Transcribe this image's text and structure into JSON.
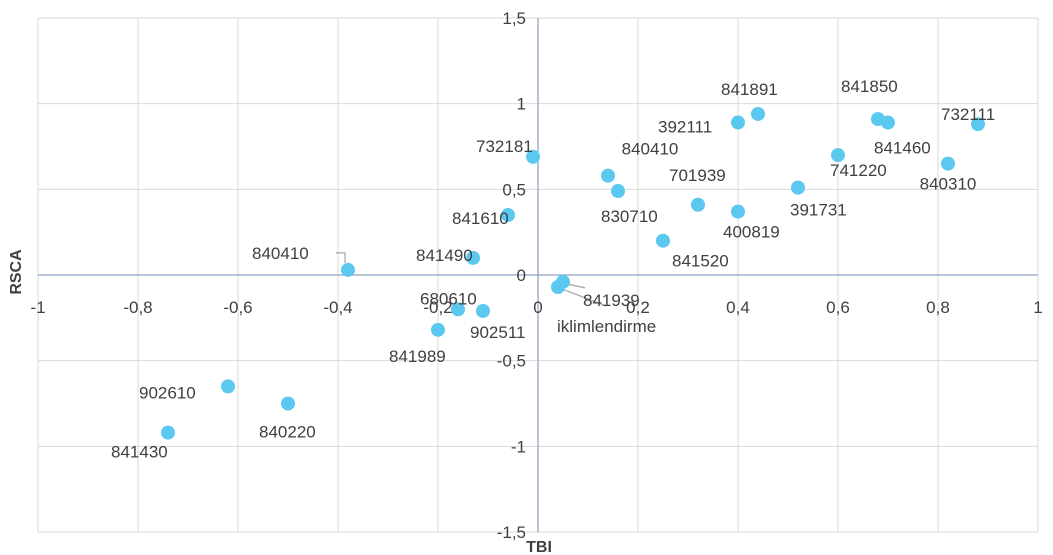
{
  "chart_data": {
    "type": "scatter",
    "title": "",
    "xlabel": "TBI",
    "ylabel": "RSCA",
    "xlim": [
      -1,
      1
    ],
    "ylim": [
      -1.5,
      1.5
    ],
    "x_ticks": [
      -1,
      -0.8,
      -0.6,
      -0.4,
      -0.2,
      0,
      0.2,
      0.4,
      0.6,
      0.8,
      1
    ],
    "x_tick_labels": [
      "-1",
      "-0,8",
      "-0,6",
      "-0,4",
      "-0,2",
      "0",
      "0,2",
      "0,4",
      "0,6",
      "0,8",
      "1"
    ],
    "y_ticks": [
      -1.5,
      -1,
      -0.5,
      0,
      0.5,
      1,
      1.5
    ],
    "y_tick_labels": [
      "-1,5",
      "-1",
      "-0,5",
      "0",
      "0,5",
      "1",
      "1,5"
    ],
    "grid": true,
    "marker_color": "#5bc8ef",
    "axis_color": "#8fa5c4",
    "points": [
      {
        "label": "732181",
        "x": -0.01,
        "y": 0.69
      },
      {
        "label": "840410",
        "x": 0.14,
        "y": 0.58
      },
      {
        "label": "841891",
        "x": 0.44,
        "y": 0.94
      },
      {
        "label": "392111",
        "x": 0.4,
        "y": 0.89
      },
      {
        "label": "841850",
        "x": 0.68,
        "y": 0.91
      },
      {
        "label": "841460",
        "x": 0.7,
        "y": 0.89
      },
      {
        "label": "732111",
        "x": 0.88,
        "y": 0.88
      },
      {
        "label": "741220",
        "x": 0.6,
        "y": 0.7
      },
      {
        "label": "840310",
        "x": 0.82,
        "y": 0.65
      },
      {
        "label": "701939",
        "x": 0.32,
        "y": 0.41
      },
      {
        "label": "830710",
        "x": 0.16,
        "y": 0.49
      },
      {
        "label": "391731",
        "x": 0.52,
        "y": 0.51
      },
      {
        "label": "400819",
        "x": 0.4,
        "y": 0.37
      },
      {
        "label": "841610",
        "x": -0.06,
        "y": 0.35
      },
      {
        "label": "841520",
        "x": 0.25,
        "y": 0.2
      },
      {
        "label": "840410",
        "x": -0.38,
        "y": 0.03
      },
      {
        "label": "841490",
        "x": -0.13,
        "y": 0.1
      },
      {
        "label": "841939",
        "x": 0.05,
        "y": -0.04
      },
      {
        "label": "iklimlendirme",
        "x": 0.04,
        "y": -0.07
      },
      {
        "label": "680610",
        "x": -0.16,
        "y": -0.2
      },
      {
        "label": "902511",
        "x": -0.11,
        "y": -0.21
      },
      {
        "label": "841989",
        "x": -0.2,
        "y": -0.32
      },
      {
        "label": "902610",
        "x": -0.62,
        "y": -0.65
      },
      {
        "label": "840220",
        "x": -0.5,
        "y": -0.75
      },
      {
        "label": "841430",
        "x": -0.74,
        "y": -0.92
      }
    ]
  }
}
